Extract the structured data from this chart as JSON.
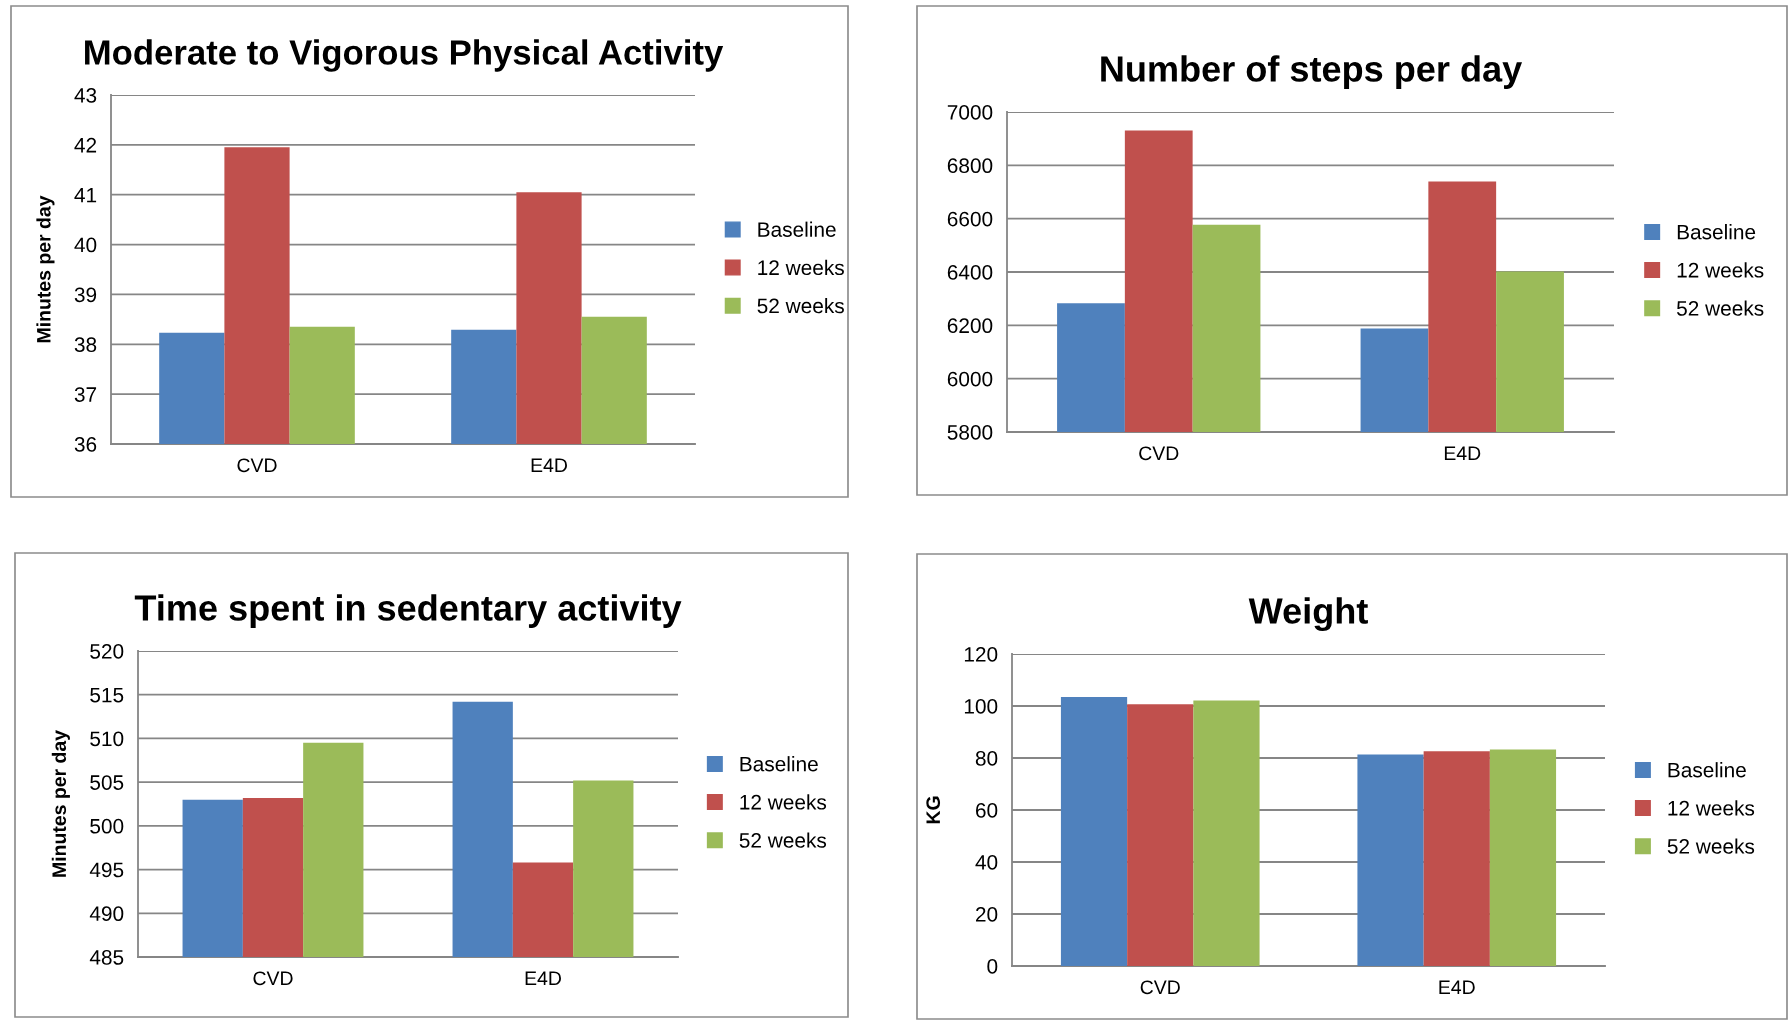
{
  "chart_data": [
    {
      "type": "bar",
      "title": "Moderate to Vigorous Physical Activity",
      "ylabel": "Minutes per day",
      "categories": [
        "CVD",
        "E4D"
      ],
      "series": [
        {
          "name": "Baseline",
          "color": "#4f81bd",
          "values": [
            38.23,
            38.29
          ]
        },
        {
          "name": "12 weeks",
          "color": "#c0504d",
          "values": [
            41.95,
            41.05
          ]
        },
        {
          "name": "52 weeks",
          "color": "#9bbb59",
          "values": [
            38.35,
            38.55
          ]
        }
      ],
      "ylim": [
        36,
        43
      ],
      "yticks": [
        36,
        37,
        38,
        39,
        40,
        41,
        42,
        43
      ],
      "grid": "y",
      "legend": "right"
    },
    {
      "type": "bar",
      "title": "Number of steps per day",
      "categories": [
        "CVD",
        "E4D"
      ],
      "series": [
        {
          "name": "Baseline",
          "color": "#4f81bd",
          "values": [
            6283,
            6188
          ]
        },
        {
          "name": "12 weeks",
          "color": "#c0504d",
          "values": [
            6931,
            6739
          ]
        },
        {
          "name": "52 weeks",
          "color": "#9bbb59",
          "values": [
            6577,
            6402
          ]
        }
      ],
      "ylim": [
        5800,
        7000
      ],
      "yticks": [
        5800,
        6000,
        6200,
        6400,
        6600,
        6800,
        7000
      ],
      "grid": "y",
      "legend": "right"
    },
    {
      "type": "bar",
      "title": "Time spent in sedentary activity",
      "ylabel": "Minutes per day",
      "categories": [
        "CVD",
        "E4D"
      ],
      "series": [
        {
          "name": "Baseline",
          "color": "#4f81bd",
          "values": [
            503.0,
            514.2
          ]
        },
        {
          "name": "12 weeks",
          "color": "#c0504d",
          "values": [
            503.2,
            495.8
          ]
        },
        {
          "name": "52 weeks",
          "color": "#9bbb59",
          "values": [
            509.5,
            505.2
          ]
        }
      ],
      "ylim": [
        485,
        520
      ],
      "yticks": [
        485,
        490,
        495,
        500,
        505,
        510,
        515,
        520
      ],
      "grid": "y",
      "legend": "right"
    },
    {
      "type": "bar",
      "title": "Weight",
      "ylabel": "KG",
      "categories": [
        "CVD",
        "E4D"
      ],
      "series": [
        {
          "name": "Baseline",
          "color": "#4f81bd",
          "values": [
            103.5,
            81.3
          ]
        },
        {
          "name": "12 weeks",
          "color": "#c0504d",
          "values": [
            100.7,
            82.6
          ]
        },
        {
          "name": "52 weeks",
          "color": "#9bbb59",
          "values": [
            102.1,
            83.3
          ]
        }
      ],
      "ylim": [
        0,
        120
      ],
      "yticks": [
        0,
        20,
        40,
        60,
        80,
        100,
        120
      ],
      "grid": "y",
      "legend": "right"
    }
  ]
}
